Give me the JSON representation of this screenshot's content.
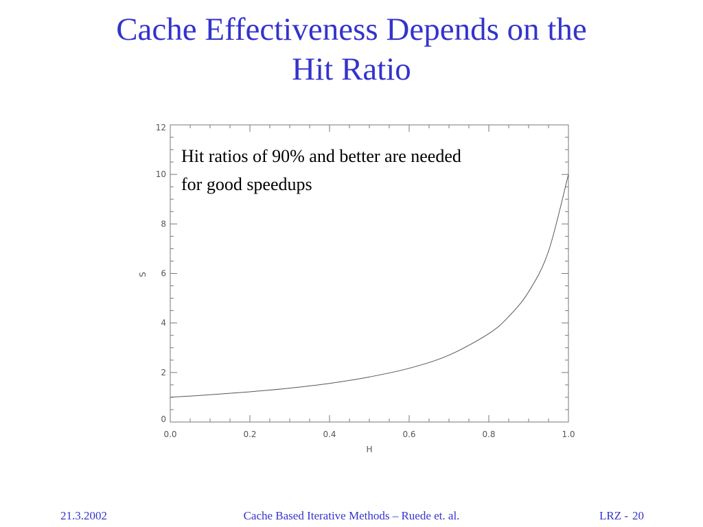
{
  "slide": {
    "title_lines": [
      "Cache Effectiveness Depends on the",
      "Hit Ratio"
    ]
  },
  "footer": {
    "date": "21.3.2002",
    "center": "Cache Based Iterative Methods – Ruede et. al.",
    "org": "LRZ -",
    "page": "20"
  },
  "colors": {
    "title": "#3333cc",
    "footer": "#3333cc",
    "axis": "#777777",
    "curve": "#555555"
  },
  "chart_data": {
    "type": "line",
    "title": "",
    "xlabel": "H",
    "ylabel": "S",
    "xlim": [
      0,
      1
    ],
    "ylim": [
      0,
      12
    ],
    "x_ticks": [
      "0.0",
      "0.2",
      "0.4",
      "0.6",
      "0.8",
      "1.0"
    ],
    "y_ticks": [
      "0",
      "2",
      "4",
      "6",
      "8",
      "10",
      "12"
    ],
    "grid": false,
    "annotation": {
      "lines": [
        "Hit ratios of 90% and better are needed",
        "for good speedups"
      ],
      "position": "top-left"
    },
    "series": [
      {
        "x": [
          0.0,
          0.1,
          0.2,
          0.3,
          0.4,
          0.5,
          0.6,
          0.7,
          0.8,
          0.85,
          0.9,
          0.95,
          1.0
        ],
        "y": [
          1.0,
          1.1,
          1.22,
          1.37,
          1.56,
          1.82,
          2.17,
          2.7,
          3.57,
          4.26,
          5.26,
          6.9,
          10.0
        ]
      }
    ]
  }
}
